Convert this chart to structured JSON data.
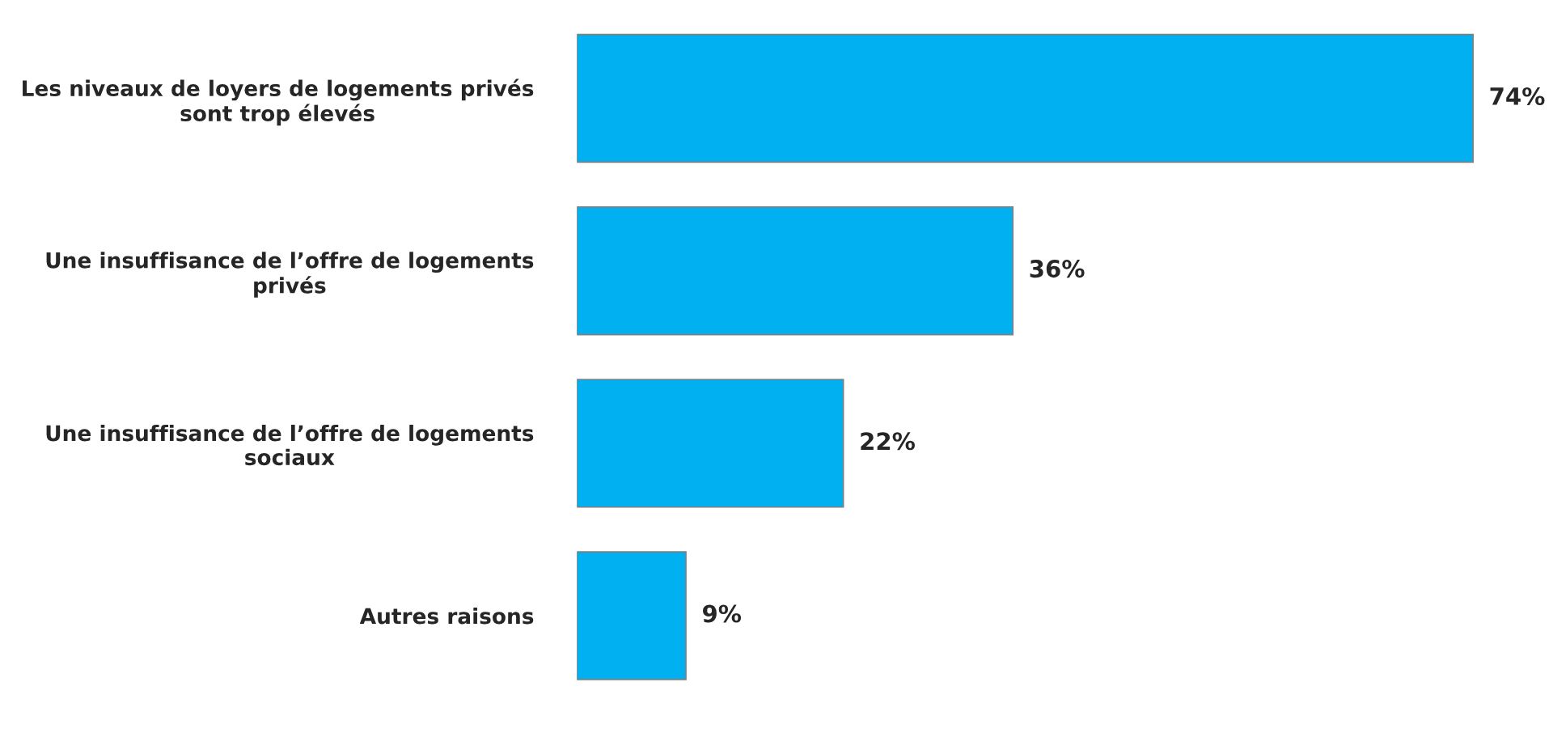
{
  "chart_data": {
    "type": "bar",
    "orientation": "horizontal",
    "categories": [
      "Les niveaux de loyers de logements privés\nsont trop élevés",
      "Une insuffisance de l’offre de logements\nprivés",
      "Une insuffisance de l’offre de logements\nsociaux",
      "Autres raisons"
    ],
    "values": [
      74,
      36,
      22,
      9
    ],
    "value_labels": [
      "74%",
      "36%",
      "22%",
      "9%"
    ],
    "color": "#00b0f0",
    "grid": false,
    "legend": false
  }
}
